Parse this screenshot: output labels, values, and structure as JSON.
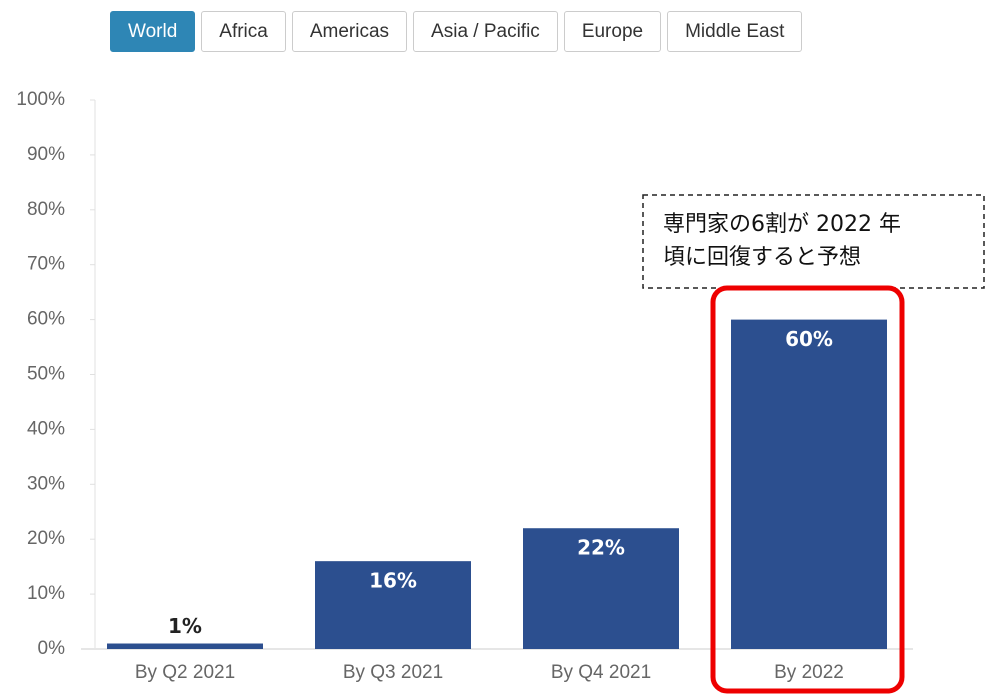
{
  "tabs": [
    "World",
    "Africa",
    "Americas",
    "Asia / Pacific",
    "Europe",
    "Middle East"
  ],
  "active_tab": 0,
  "chart_data": {
    "type": "bar",
    "categories": [
      "By Q2 2021",
      "By Q3 2021",
      "By Q4 2021",
      "By 2022"
    ],
    "values": [
      1,
      16,
      22,
      60
    ],
    "value_labels": [
      "1%",
      "16%",
      "22%",
      "60%"
    ],
    "color": "#2c4f8f",
    "ylim": [
      0,
      100
    ],
    "yticks": [
      {
        "value": 0,
        "label": "0%"
      },
      {
        "value": 10,
        "label": "10%"
      },
      {
        "value": 20,
        "label": "20%"
      },
      {
        "value": 30,
        "label": "30%"
      },
      {
        "value": 40,
        "label": "40%"
      },
      {
        "value": 50,
        "label": "50%"
      },
      {
        "value": 60,
        "label": "60%"
      },
      {
        "value": 70,
        "label": "70%"
      },
      {
        "value": 80,
        "label": "80%"
      },
      {
        "value": 90,
        "label": "90%"
      },
      {
        "value": 100,
        "label": "100%"
      }
    ],
    "annotation": [
      "専門家の6割が 2022 年",
      "頃に回復すると予想"
    ]
  }
}
